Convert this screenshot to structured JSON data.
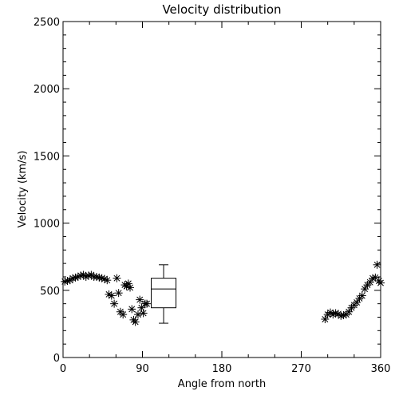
{
  "chart_data": {
    "type": "scatter",
    "title": "Velocity distribution",
    "xlabel": "Angle from north",
    "ylabel": "Velocity (km/s)",
    "xlim": [
      0,
      360
    ],
    "ylim": [
      0,
      2500
    ],
    "xticks": [
      0,
      90,
      180,
      270,
      360
    ],
    "yticks": [
      0,
      500,
      1000,
      1500,
      2000,
      2500
    ],
    "grid": false,
    "marker": "asterisk",
    "series": [
      {
        "points": [
          [
            2,
            565
          ],
          [
            5,
            570
          ],
          [
            8,
            575
          ],
          [
            11,
            590
          ],
          [
            14,
            595
          ],
          [
            17,
            600
          ],
          [
            20,
            610
          ],
          [
            23,
            615
          ],
          [
            26,
            600
          ],
          [
            29,
            610
          ],
          [
            32,
            615
          ],
          [
            35,
            600
          ],
          [
            38,
            600
          ],
          [
            41,
            595
          ],
          [
            44,
            590
          ],
          [
            47,
            585
          ],
          [
            50,
            575
          ],
          [
            52,
            470
          ],
          [
            55,
            460
          ],
          [
            58,
            400
          ],
          [
            61,
            590
          ],
          [
            63,
            480
          ],
          [
            65,
            340
          ],
          [
            68,
            320
          ],
          [
            70,
            540
          ],
          [
            72,
            530
          ],
          [
            74,
            550
          ],
          [
            76,
            520
          ],
          [
            78,
            360
          ],
          [
            80,
            280
          ],
          [
            82,
            265
          ],
          [
            85,
            320
          ],
          [
            87,
            430
          ],
          [
            89,
            370
          ],
          [
            91,
            330
          ],
          [
            93,
            400
          ],
          [
            95,
            400
          ],
          [
            297,
            285
          ],
          [
            300,
            320
          ],
          [
            303,
            335
          ],
          [
            306,
            320
          ],
          [
            309,
            330
          ],
          [
            312,
            325
          ],
          [
            315,
            310
          ],
          [
            318,
            315
          ],
          [
            321,
            320
          ],
          [
            324,
            340
          ],
          [
            327,
            370
          ],
          [
            330,
            390
          ],
          [
            333,
            410
          ],
          [
            336,
            440
          ],
          [
            339,
            460
          ],
          [
            342,
            510
          ],
          [
            345,
            540
          ],
          [
            348,
            560
          ],
          [
            351,
            590
          ],
          [
            354,
            595
          ],
          [
            356,
            690
          ],
          [
            358,
            570
          ],
          [
            360,
            555
          ]
        ]
      }
    ],
    "boxplot": {
      "x_left": 100,
      "x_right": 128,
      "whisker_low": 255,
      "q1": 370,
      "median": 510,
      "q3": 590,
      "whisker_high": 690
    }
  }
}
